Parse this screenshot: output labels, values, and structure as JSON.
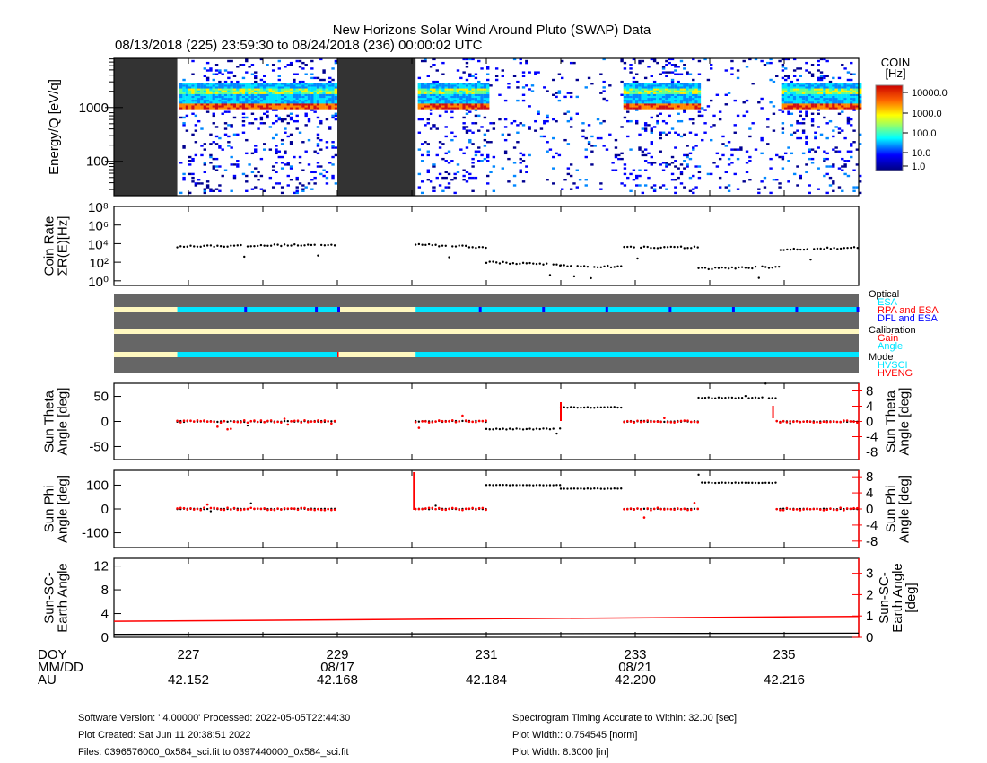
{
  "title": "New Horizons Solar Wind Around Pluto (SWAP) Data",
  "subtitle": "08/13/2018 (225) 23:59:30 to 08/24/2018 (236) 00:00:02 UTC",
  "x_axis": {
    "doy_range": [
      226,
      236
    ],
    "labels": {
      "row1": "DOY",
      "row2": "MM/DD",
      "row3": "AU"
    },
    "ticks": [
      {
        "doy": 227,
        "label": "227",
        "date": "",
        "au": "42.152"
      },
      {
        "doy": 229,
        "label": "229",
        "date": "08/17",
        "au": "42.168"
      },
      {
        "doy": 231,
        "label": "231",
        "date": "",
        "au": "42.184"
      },
      {
        "doy": 233,
        "label": "233",
        "date": "08/21",
        "au": "42.200"
      },
      {
        "doy": 235,
        "label": "235",
        "date": "",
        "au": "42.216"
      }
    ]
  },
  "colorbar": {
    "title1": "COIN",
    "title2": "[Hz]",
    "ticks": [
      "10000.0",
      "1000.0",
      "100.0",
      "10.0",
      "1.0"
    ]
  },
  "legend": {
    "optical": "Optical",
    "esa": "ESA",
    "rpa": "RPA and ESA",
    "dfl": "DFL and ESA",
    "calibration": "Calibration",
    "gain": "Gain",
    "angle": "Angle",
    "mode": "Mode",
    "hvsci": "HVSCI",
    "hveng": "HVENG",
    "colors": {
      "esa": "#00e5ff",
      "rpa": "#ff0000",
      "dfl": "#0000ff",
      "nodata": "#666666",
      "off": "#fff8c0"
    }
  },
  "chart_data": [
    {
      "type": "heatmap",
      "name": "spectrogram",
      "ylabel": "Energy/Q [eV/q]",
      "yscale": "log",
      "ylim": [
        23,
        8200
      ],
      "yticks": [
        "1000",
        "100"
      ],
      "gaps": [
        [
          226.0,
          226.85
        ],
        [
          229.0,
          230.05
        ]
      ],
      "active": [
        [
          226.85,
          229.0
        ],
        [
          230.05,
          231.0
        ],
        [
          232.8,
          233.85
        ],
        [
          234.95,
          236.0
        ]
      ],
      "bands_eV": [
        1000,
        2000
      ]
    },
    {
      "type": "scatter",
      "name": "coin-rate",
      "ylabel1": "Coin Rate",
      "ylabel2": "ΣR(E)[Hz]",
      "yscale": "log",
      "ylim_log10": [
        -0.5,
        8
      ],
      "yticks": [
        {
          "e": 0,
          "l": "10⁰"
        },
        {
          "e": 2,
          "l": "10²"
        },
        {
          "e": 4,
          "l": "10⁴"
        },
        {
          "e": 6,
          "l": "10⁶"
        },
        {
          "e": 8,
          "l": "10⁸"
        }
      ],
      "segments_log10": [
        [
          226.85,
          229.0,
          3.7,
          3.9
        ],
        [
          230.05,
          231.0,
          3.9,
          3.6
        ],
        [
          231.0,
          232.0,
          2.0,
          1.7
        ],
        [
          232.0,
          232.85,
          1.6,
          1.5
        ],
        [
          232.85,
          233.85,
          3.6,
          3.6
        ],
        [
          233.85,
          234.95,
          1.3,
          1.5
        ],
        [
          234.95,
          236.0,
          3.3,
          3.6
        ]
      ]
    },
    {
      "type": "scatter",
      "name": "sun-theta",
      "ylabel1": "Sun Theta",
      "ylabel2": "Angle [deg]",
      "ylim": [
        -76,
        76
      ],
      "yticks": [
        "50",
        "0",
        "-50"
      ],
      "ytick_vals": [
        50,
        0,
        -50
      ],
      "rlabel1": "Sun Theta",
      "rlabel2": "Angle [deg]",
      "rlim": [
        -10,
        10
      ],
      "rticks": [
        8,
        4,
        0,
        -4,
        -8
      ],
      "black_segments": [
        [
          226.85,
          229.0,
          0
        ],
        [
          230.05,
          231.0,
          0
        ],
        [
          231.0,
          232.0,
          -15
        ],
        [
          232.0,
          232.85,
          28
        ],
        [
          232.85,
          233.85,
          0
        ],
        [
          233.85,
          234.9,
          47
        ],
        [
          234.9,
          236.0,
          0
        ]
      ],
      "red_segments": [
        [
          226.85,
          229.0,
          0
        ],
        [
          230.05,
          231.0,
          0
        ],
        [
          232.85,
          233.85,
          0
        ],
        [
          234.9,
          236.0,
          0
        ]
      ]
    },
    {
      "type": "scatter",
      "name": "sun-phi",
      "ylabel1": "Sun Phi",
      "ylabel2": "Angle [deg]",
      "ylim": [
        -162,
        162
      ],
      "yticks": [
        "100",
        "0",
        "-100"
      ],
      "ytick_vals": [
        100,
        0,
        -100
      ],
      "rlabel1": "Sun Phi",
      "rlabel2": "Angle [deg]",
      "rlim": [
        -9.6,
        9.6
      ],
      "rticks": [
        8,
        4,
        0,
        -4,
        -8
      ],
      "black_segments": [
        [
          226.85,
          229.0,
          0
        ],
        [
          230.05,
          231.0,
          0
        ],
        [
          231.0,
          232.0,
          100
        ],
        [
          232.0,
          232.85,
          85
        ],
        [
          232.85,
          233.85,
          0
        ],
        [
          233.85,
          234.9,
          110
        ],
        [
          234.9,
          236.0,
          0
        ]
      ],
      "red_segments": [
        [
          226.85,
          229.0,
          0
        ],
        [
          230.05,
          231.0,
          0
        ],
        [
          232.85,
          233.85,
          0
        ],
        [
          234.9,
          236.0,
          0
        ]
      ]
    },
    {
      "type": "line",
      "name": "sun-sc-earth",
      "ylabel1": "Sun-SC-",
      "ylabel2": "Earth Angle",
      "ylabel3": "[deg]",
      "ylim": [
        0,
        13.3
      ],
      "yticks": [
        "12",
        "8",
        "4",
        "0"
      ],
      "ytick_vals": [
        12,
        8,
        4,
        0
      ],
      "rlabel1": "Sun-SC-",
      "rlabel2": "Earth Angle",
      "rlabel3": "[deg]",
      "rlim": [
        0,
        3.7
      ],
      "rticks": [
        3,
        2,
        1,
        0
      ],
      "black": [
        [
          226,
          0.5
        ],
        [
          236,
          0.7
        ]
      ],
      "red": [
        [
          226,
          0.75
        ],
        [
          236,
          0.98
        ]
      ]
    }
  ],
  "footer": {
    "software": "Software Version:  ' 4.00000'  Processed: 2022-05-05T22:44:30",
    "created": "Plot Created: Sat Jun 11 20:38:51 2022",
    "files": "Files: 0396576000_0x584_sci.fit to 0397440000_0x584_sci.fit",
    "timing": "Spectrogram Timing Accurate to Within: 32.00 [sec]",
    "width_norm": "Plot Width:: 0.754545 [norm]",
    "width_in": "Plot Width: 8.3000 [in]"
  }
}
